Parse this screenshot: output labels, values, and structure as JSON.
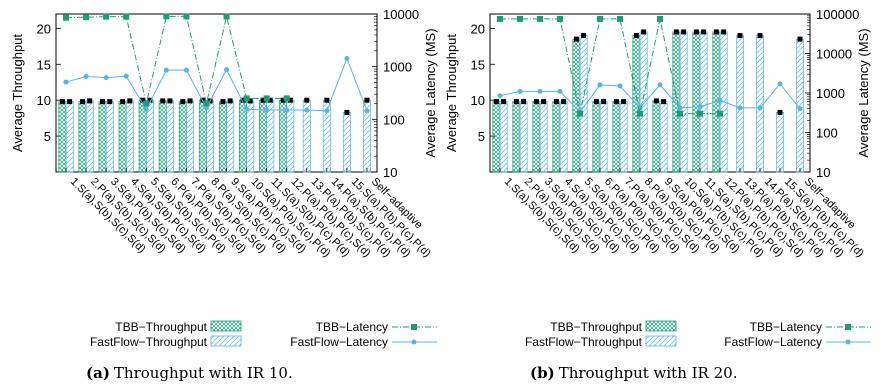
{
  "captions": [
    {
      "tag": "(a)",
      "text": "Throughput with IR 10."
    },
    {
      "tag": "(b)",
      "text": "Throughput with IR 20."
    }
  ],
  "legend": {
    "tbb_throughput": "TBB−Throughput",
    "fastflow_throughput": "FastFlow−Throughput",
    "tbb_latency": "TBB−Latency",
    "fastflow_latency": "FastFlow−Latency"
  },
  "colors": {
    "tbb": "#1a9e77",
    "fastflow": "#56b4e9",
    "marker": "#000000"
  },
  "chart_data": [
    {
      "id": "ir10",
      "type": "bar",
      "categories": [
        "1.S(a),S(b),S(c),S(d)",
        "2.P(a),S(b),S(c),S(d)",
        "3.S(a),P(b),S(c),S(d)",
        "4.S(a),S(b),P(c),S(d)",
        "5.S(a),S(b),S(c),P(d)",
        "6.P(a),P(b),S(c),S(d)",
        "7.P(a),S(b),P(c),S(d)",
        "8.P(a),S(b),S(c),P(d)",
        "9.S(a),P(b),P(c),S(d)",
        "10.S(a),P(b),S(c),P(d)",
        "11.S(a),S(b),P(c),P(d)",
        "12.P(a),P(b),P(c),S(d)",
        "13.P(a),P(b),S(c),P(d)",
        "14.P(a),S(b),P(c),P(d)",
        "15.S(a),P(b),P(c),P(d)",
        "Self−adaptive"
      ],
      "y_left": {
        "label": "Average Throughput",
        "ticks": [
          5,
          10,
          15,
          20
        ],
        "ylim": [
          0,
          22
        ]
      },
      "y_right": {
        "label": "Average Latency (MS)",
        "scale": "log",
        "ticks": [
          10,
          100,
          1000,
          10000
        ],
        "ylim": [
          10,
          10000
        ]
      },
      "series": [
        {
          "name": "TBB−Throughput",
          "axis": "left",
          "kind": "bar",
          "pattern": "crosshatch",
          "values": [
            9.8,
            9.8,
            9.8,
            9.8,
            10.0,
            9.9,
            9.8,
            10.0,
            9.8,
            10.0,
            10.0,
            10.0,
            null,
            null,
            null,
            null
          ]
        },
        {
          "name": "FastFlow−Throughput",
          "axis": "left",
          "kind": "bar",
          "pattern": "diagonal",
          "values": [
            9.8,
            9.9,
            9.8,
            9.9,
            10.0,
            9.9,
            9.9,
            9.9,
            9.9,
            9.9,
            10.0,
            10.0,
            10.0,
            10.0,
            8.3,
            10.0
          ]
        },
        {
          "name": "TBB−Latency",
          "axis": "right",
          "kind": "line",
          "values": [
            8500,
            8700,
            8900,
            8900,
            200,
            9000,
            9000,
            200,
            9000,
            250,
            250,
            250,
            null,
            null,
            null,
            null
          ]
        },
        {
          "name": "FastFlow−Latency",
          "axis": "right",
          "kind": "line",
          "values": [
            510,
            650,
            620,
            660,
            155,
            860,
            860,
            165,
            880,
            155,
            150,
            150,
            150,
            145,
            1430,
            145
          ]
        }
      ]
    },
    {
      "id": "ir20",
      "type": "bar",
      "categories": [
        "1.S(a),S(b),S(c),S(d)",
        "2.P(a),S(b),S(c),S(d)",
        "3.S(a),P(b),S(c),S(d)",
        "4.S(a),S(b),P(c),S(d)",
        "5.S(a),S(b),S(c),P(d)",
        "6.P(a),P(b),S(c),S(d)",
        "7.P(a),S(b),P(c),S(d)",
        "8.P(a),S(b),S(c),P(d)",
        "9.S(a),P(b),P(c),S(d)",
        "10.S(a),P(b),S(c),P(d)",
        "11.S(a),S(b),P(c),P(d)",
        "12.P(a),P(b),P(c),S(d)",
        "13.P(a),P(b),S(c),P(d)",
        "14.P(a),S(b),P(c),P(d)",
        "15.S(a),P(b),P(c),P(d)",
        "Self−adaptive"
      ],
      "y_left": {
        "label": "Average Throughput",
        "ticks": [
          5,
          10,
          15,
          20
        ],
        "ylim": [
          0,
          22
        ]
      },
      "y_right": {
        "label": "Average Latency (MS)",
        "scale": "log",
        "ticks": [
          10,
          100,
          1000,
          10000,
          100000
        ],
        "ylim": [
          10,
          100000
        ]
      },
      "series": [
        {
          "name": "TBB−Throughput",
          "axis": "left",
          "kind": "bar",
          "pattern": "crosshatch",
          "values": [
            9.8,
            9.8,
            9.8,
            9.8,
            18.5,
            9.8,
            9.8,
            19.0,
            9.9,
            19.5,
            19.5,
            19.5,
            null,
            null,
            null,
            null
          ]
        },
        {
          "name": "FastFlow−Throughput",
          "axis": "left",
          "kind": "bar",
          "pattern": "diagonal",
          "values": [
            9.8,
            9.8,
            9.8,
            9.8,
            19.0,
            9.8,
            9.8,
            19.5,
            9.8,
            19.5,
            19.5,
            19.5,
            19.0,
            19.0,
            8.3,
            18.5
          ]
        },
        {
          "name": "TBB−Latency",
          "axis": "right",
          "kind": "line",
          "values": [
            75000,
            75000,
            75000,
            75000,
            300,
            75000,
            75000,
            300,
            75000,
            300,
            300,
            300,
            null,
            null,
            null,
            null
          ]
        },
        {
          "name": "FastFlow−Latency",
          "axis": "right",
          "kind": "line",
          "values": [
            850,
            1100,
            1100,
            1100,
            330,
            1600,
            1500,
            420,
            1600,
            420,
            450,
            650,
            420,
            420,
            1700,
            400
          ]
        }
      ]
    }
  ]
}
